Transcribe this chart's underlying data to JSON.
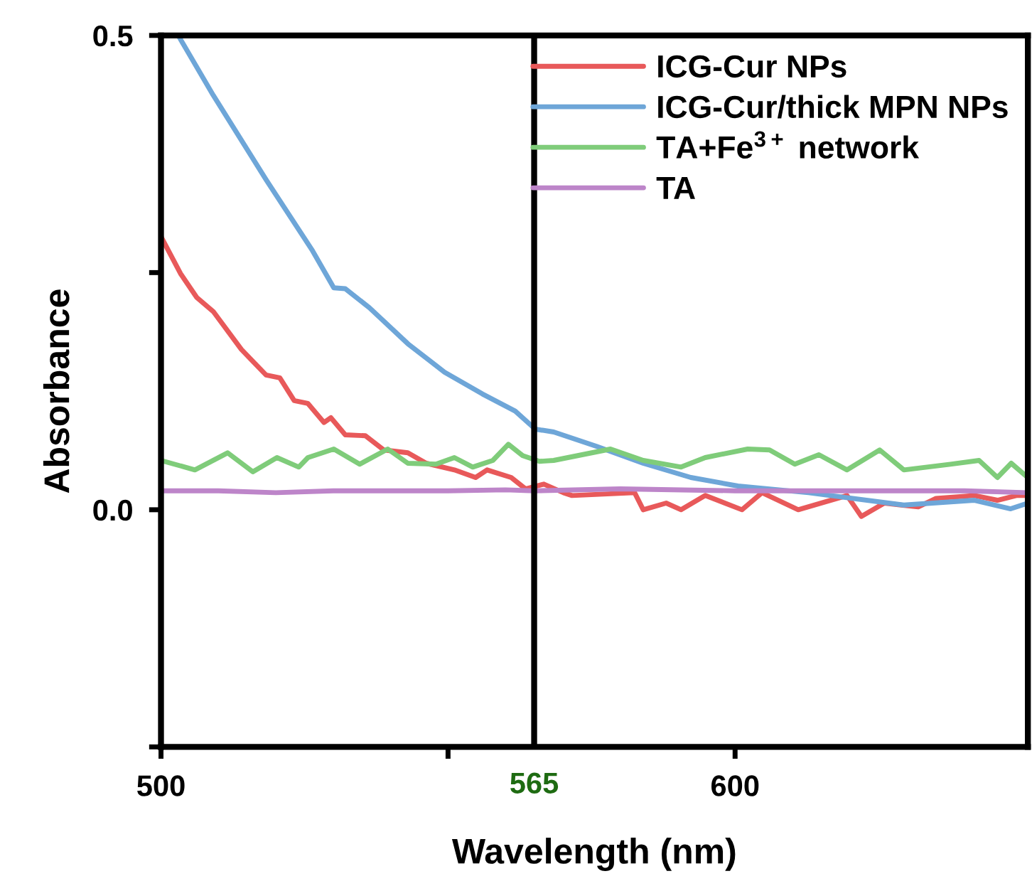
{
  "chart_data": {
    "type": "line",
    "xlabel": "Wavelength (nm)",
    "ylabel": "Absorbance",
    "xlim": [
      500,
      651
    ],
    "ylim": [
      -0.25,
      0.5
    ],
    "xticks": [
      500,
      {
        "value": 550,
        "label": null
      },
      600
    ],
    "yticks": [
      {
        "value": 0.5,
        "label": "0.5"
      },
      {
        "value": 0.25,
        "label": null
      },
      {
        "value": 0,
        "label": "0.0"
      },
      {
        "value": -0.25,
        "label": null
      }
    ],
    "ref_lines": [
      {
        "axis": "x",
        "value": 565,
        "label": "565",
        "color": "#000000"
      }
    ],
    "legend": "top right",
    "grid": false,
    "marker": "none",
    "line_style": "solid",
    "series": [
      {
        "name": "ICG-Cur NPs",
        "color": "#e8595a",
        "x": [
          500,
          503.4,
          506.2,
          509.1,
          514,
          518.3,
          520.7,
          523.2,
          525.6,
          528.4,
          529.6,
          532.1,
          535.6,
          538.8,
          543,
          546.2,
          551.1,
          554.8,
          556.8,
          561,
          563.5,
          566.7,
          570.1,
          571.6,
          582.5,
          584,
          588,
          590.6,
          594.8,
          601.2,
          604.7,
          611,
          619.5,
          622,
          626,
          631.9,
          635,
          641.7,
          645.7,
          649,
          651
        ],
        "values": [
          0.288,
          0.249,
          0.224,
          0.209,
          0.169,
          0.142,
          0.139,
          0.115,
          0.112,
          0.092,
          0.097,
          0.079,
          0.078,
          0.063,
          0.06,
          0.049,
          0.042,
          0.034,
          0.042,
          0.034,
          0.022,
          0.027,
          0.018,
          0.015,
          0.018,
          0.0,
          0.007,
          0.0,
          0.015,
          0.0,
          0.018,
          0.0,
          0.015,
          -0.007,
          0.007,
          0.003,
          0.012,
          0.015,
          0.01,
          0.015,
          0.015
        ]
      },
      {
        "name": "ICG-Cur/thick MPN NPs",
        "color": "#6ea6d8",
        "x": [
          503,
          509.1,
          518.3,
          526.4,
          530.1,
          532.1,
          536.3,
          543,
          549.4,
          556,
          561.7,
          565.2,
          568.4,
          575.8,
          584,
          592.3,
          600.5,
          612.8,
          629.4,
          641.7,
          648,
          651
        ],
        "values": [
          0.5,
          0.437,
          0.348,
          0.273,
          0.234,
          0.233,
          0.213,
          0.175,
          0.145,
          0.122,
          0.104,
          0.085,
          0.082,
          0.067,
          0.049,
          0.034,
          0.025,
          0.018,
          0.005,
          0.01,
          0.001,
          0.007
        ]
      },
      {
        "name": "TA+Fe$^{3+}$ network",
        "color": "#7fcc7a",
        "x": [
          500,
          505.9,
          511.6,
          516,
          520.2,
          524,
          525.6,
          530.1,
          534.6,
          539.5,
          543,
          547.9,
          551.1,
          554.3,
          557.8,
          560.5,
          563,
          565.9,
          568.4,
          578.3,
          584,
          590.6,
          594.8,
          602.2,
          606,
          610.4,
          614.6,
          619.5,
          625.2,
          629.4,
          637.5,
          642.5,
          645.7,
          648.1,
          651
        ],
        "values": [
          0.052,
          0.042,
          0.06,
          0.04,
          0.055,
          0.045,
          0.055,
          0.064,
          0.048,
          0.064,
          0.049,
          0.048,
          0.055,
          0.045,
          0.052,
          0.069,
          0.057,
          0.051,
          0.052,
          0.064,
          0.052,
          0.045,
          0.055,
          0.064,
          0.063,
          0.048,
          0.058,
          0.042,
          0.063,
          0.042,
          0.048,
          0.052,
          0.034,
          0.049,
          0.034
        ]
      },
      {
        "name": "TA",
        "color": "#bd85c9",
        "x": [
          500,
          510,
          520,
          530,
          540,
          550,
          560,
          565,
          580,
          600,
          620,
          640,
          651
        ],
        "values": [
          0.02,
          0.02,
          0.018,
          0.02,
          0.02,
          0.02,
          0.021,
          0.02,
          0.022,
          0.02,
          0.02,
          0.02,
          0.018
        ]
      }
    ]
  }
}
